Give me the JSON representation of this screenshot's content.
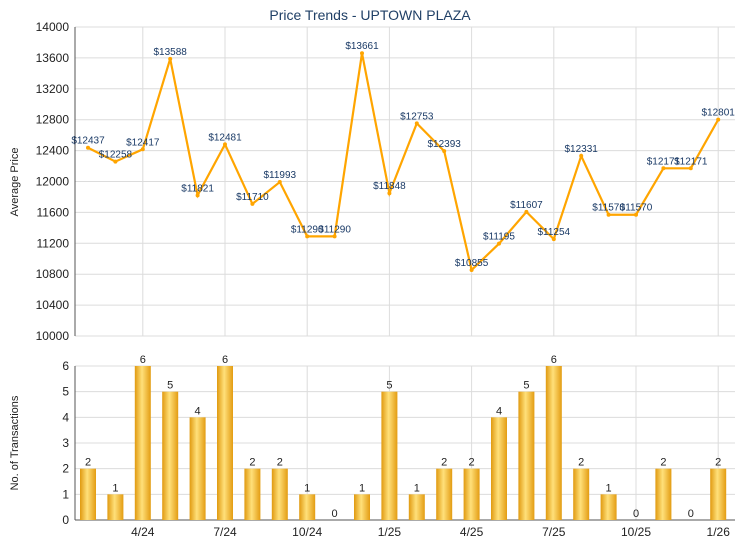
{
  "chart_data": [
    {
      "type": "line",
      "title": "Price Trends - UPTOWN PLAZA",
      "ylabel": "Average Price",
      "ylim": [
        10000,
        14000
      ],
      "yticks": [
        10000,
        10400,
        10800,
        11200,
        11600,
        12000,
        12400,
        12800,
        13200,
        13600,
        14000
      ],
      "grid": true,
      "color": "#ffa500",
      "x": [
        "2/24",
        "3/24",
        "4/24",
        "5/24",
        "6/24",
        "7/24",
        "8/24",
        "9/24",
        "10/24",
        "11/24",
        "12/24",
        "1/25",
        "2/25",
        "3/25",
        "4/25",
        "5/25",
        "6/25",
        "7/25",
        "8/25",
        "9/25",
        "10/25",
        "11/25",
        "12/25",
        "1/26"
      ],
      "values": [
        12437,
        12258,
        12417,
        13588,
        11821,
        12481,
        11710,
        11993,
        11290,
        11290,
        13661,
        11848,
        12753,
        12393,
        10855,
        11195,
        11607,
        11254,
        12331,
        11570,
        11570,
        12171,
        12171,
        12801
      ],
      "data_label_prefix": "$"
    },
    {
      "type": "bar",
      "ylabel": "No. of Transactions",
      "ylim": [
        0,
        6
      ],
      "yticks": [
        0,
        1,
        2,
        3,
        4,
        5,
        6
      ],
      "xtick_labels": [
        "4/24",
        "7/24",
        "10/24",
        "1/25",
        "4/25",
        "7/25",
        "10/25",
        "1/26"
      ],
      "grid": true,
      "color": "#f0b020",
      "values": [
        2,
        1,
        6,
        5,
        4,
        6,
        2,
        2,
        1,
        0,
        1,
        5,
        1,
        2,
        2,
        4,
        5,
        6,
        2,
        1,
        0,
        2,
        0,
        2
      ]
    }
  ]
}
